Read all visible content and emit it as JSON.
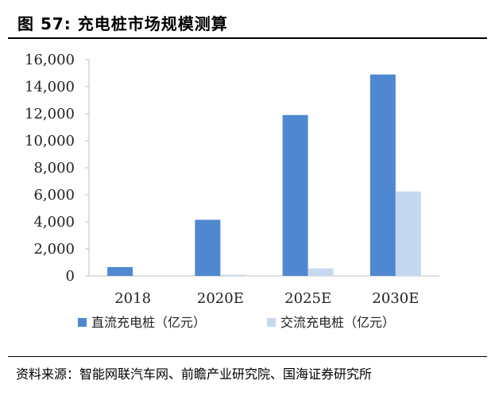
{
  "figure": {
    "title": "图 57:  充电桩市场规模测算",
    "source": "资料来源：智能网联汽车网、前瞻产业研究院、国海证券研究所"
  },
  "colors": {
    "dc": "#4f88d1",
    "ac": "#c5d8f0",
    "axis": "#bfbfbf",
    "text": "#222222"
  },
  "chart_data": {
    "type": "bar",
    "title": "",
    "xlabel": "",
    "ylabel": "",
    "categories": [
      "2018",
      "2020E",
      "2025E",
      "2030E"
    ],
    "series": [
      {
        "name": "直流充电桩（亿元）",
        "values": [
          650,
          4150,
          11900,
          14900
        ]
      },
      {
        "name": "交流充电桩（亿元）",
        "values": [
          0,
          80,
          550,
          6250
        ]
      }
    ],
    "ylim": [
      0,
      16000
    ],
    "yticks": [
      "0",
      "2,000",
      "4,000",
      "6,000",
      "8,000",
      "10,000",
      "12,000",
      "14,000",
      "16,000"
    ],
    "grid": false,
    "legend_position": "bottom"
  }
}
